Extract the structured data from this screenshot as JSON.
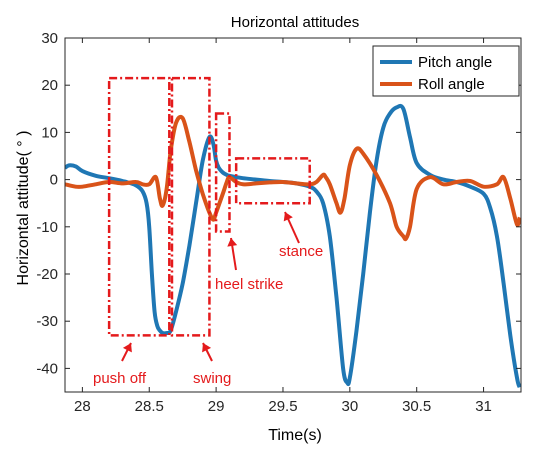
{
  "chart_data": {
    "type": "line",
    "title": "Horizontal attitudes",
    "xlabel": "Time(s)",
    "ylabel": "Horizontal attitude( ° )",
    "xlim": [
      27.87,
      31.28
    ],
    "ylim": [
      -45,
      30
    ],
    "xticks": [
      28,
      28.5,
      29,
      29.5,
      30,
      30.5,
      31
    ],
    "yticks": [
      30,
      20,
      10,
      0,
      -10,
      -20,
      -30,
      -40
    ],
    "grid": false,
    "legend_position": "top-right",
    "series": [
      {
        "name": "Pitch angle",
        "color": "#1f77b4",
        "x": [
          27.87,
          27.9,
          27.95,
          28.0,
          28.1,
          28.2,
          28.3,
          28.4,
          28.45,
          28.48,
          28.5,
          28.52,
          28.54,
          28.56,
          28.58,
          28.6,
          28.63,
          28.66,
          28.7,
          28.75,
          28.8,
          28.85,
          28.9,
          28.95,
          28.98,
          29.0,
          29.02,
          29.05,
          29.08,
          29.1,
          29.2,
          29.3,
          29.4,
          29.5,
          29.6,
          29.7,
          29.75,
          29.8,
          29.85,
          29.9,
          29.95,
          29.98,
          30.0,
          30.05,
          30.1,
          30.15,
          30.2,
          30.25,
          30.3,
          30.35,
          30.4,
          30.45,
          30.5,
          30.6,
          30.7,
          30.8,
          30.9,
          31.0,
          31.05,
          31.1,
          31.15,
          31.2,
          31.25,
          31.27
        ],
        "values": [
          2.5,
          3.0,
          2.8,
          1.8,
          0.8,
          0.3,
          -0.3,
          -1.2,
          -2.5,
          -5,
          -10,
          -20,
          -28,
          -31,
          -32,
          -32.5,
          -32.5,
          -32,
          -28,
          -22,
          -14,
          -5,
          4,
          9,
          7.5,
          4,
          2.5,
          1.5,
          1.0,
          0.8,
          0.3,
          0.0,
          -0.3,
          -0.5,
          -0.8,
          -1.5,
          -2.5,
          -5,
          -12,
          -25,
          -40,
          -43,
          -42,
          -32,
          -20,
          -7,
          4,
          11,
          14,
          15.3,
          15.0,
          9,
          3.5,
          1.0,
          0.0,
          -0.5,
          -1.5,
          -3,
          -6,
          -12,
          -22,
          -33,
          -42,
          -44
        ]
      },
      {
        "name": "Roll angle",
        "color": "#d95319",
        "x": [
          27.87,
          27.95,
          28.0,
          28.1,
          28.2,
          28.3,
          28.4,
          28.45,
          28.5,
          28.55,
          28.58,
          28.6,
          28.63,
          28.66,
          28.7,
          28.75,
          28.8,
          28.85,
          28.9,
          28.95,
          28.98,
          29.0,
          29.05,
          29.08,
          29.1,
          29.15,
          29.2,
          29.3,
          29.4,
          29.5,
          29.6,
          29.7,
          29.75,
          29.8,
          29.82,
          29.85,
          29.9,
          29.93,
          29.96,
          30.0,
          30.05,
          30.1,
          30.2,
          30.3,
          30.35,
          30.4,
          30.42,
          30.45,
          30.5,
          30.6,
          30.7,
          30.8,
          30.9,
          31.0,
          31.1,
          31.15,
          31.2,
          31.25,
          31.27
        ],
        "values": [
          -1.0,
          -1.5,
          -1.5,
          -1.0,
          -0.5,
          -0.8,
          -0.5,
          -1.0,
          -1.0,
          0.5,
          -4,
          -5.5,
          -2,
          6,
          12,
          13,
          8,
          2,
          -3,
          -7,
          -8.5,
          -7,
          -3,
          -0.5,
          0.5,
          -0.5,
          -1.0,
          -0.8,
          -0.6,
          -0.5,
          -0.8,
          -1.0,
          -0.5,
          1.0,
          0.5,
          -1.0,
          -5,
          -7,
          -4,
          3,
          6.5,
          5.5,
          1,
          -5,
          -10,
          -12,
          -12.5,
          -10,
          -2,
          0.5,
          -1.0,
          -0.5,
          -0.3,
          -1.5,
          -1.0,
          0.5,
          -4,
          -9.5,
          -8
        ]
      }
    ],
    "annotations": [
      "push off",
      "swing",
      "heel strike",
      "stance"
    ]
  }
}
